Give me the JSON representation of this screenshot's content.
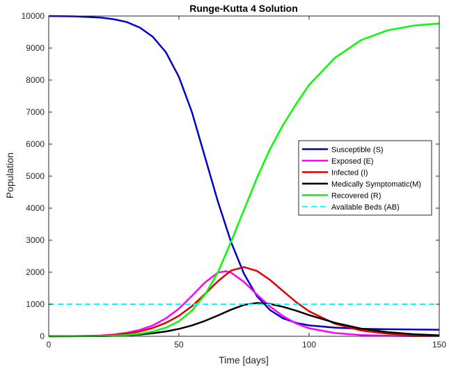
{
  "chart_data": {
    "type": "line",
    "title": "Runge-Kutta 4 Solution",
    "xlabel": "Time [days]",
    "ylabel": "Population",
    "xlim": [
      0,
      150
    ],
    "ylim": [
      0,
      10000
    ],
    "xticks": [
      "0",
      "50",
      "100",
      "150"
    ],
    "yticks": [
      "0",
      "1000",
      "2000",
      "3000",
      "4000",
      "5000",
      "6000",
      "7000",
      "8000",
      "9000",
      "10000"
    ],
    "grid": false,
    "legend_position": "center-right",
    "series": [
      {
        "name": "Susceptible (S)",
        "color": "#0000c8",
        "style": "solid",
        "x": [
          0,
          10,
          20,
          25,
          30,
          35,
          40,
          45,
          50,
          55,
          60,
          65,
          70,
          75,
          80,
          85,
          90,
          95,
          100,
          110,
          120,
          130,
          140,
          150
        ],
        "y": [
          10000,
          9990,
          9950,
          9900,
          9810,
          9640,
          9350,
          8870,
          8100,
          7000,
          5600,
          4200,
          2950,
          1950,
          1250,
          820,
          560,
          420,
          340,
          270,
          235,
          220,
          210,
          205
        ]
      },
      {
        "name": "Exposed (E)",
        "color": "#ff00ff",
        "style": "solid",
        "x": [
          0,
          10,
          20,
          25,
          30,
          35,
          40,
          45,
          50,
          55,
          60,
          65,
          68,
          70,
          75,
          80,
          85,
          90,
          95,
          100,
          110,
          120,
          130,
          140,
          150
        ],
        "y": [
          0,
          5,
          25,
          55,
          110,
          200,
          340,
          560,
          860,
          1260,
          1680,
          1990,
          2030,
          1990,
          1700,
          1300,
          930,
          630,
          400,
          250,
          100,
          40,
          15,
          6,
          2
        ]
      },
      {
        "name": "Infected (I)",
        "color": "#e00000",
        "style": "solid",
        "x": [
          0,
          10,
          20,
          25,
          30,
          35,
          40,
          45,
          50,
          55,
          60,
          65,
          70,
          75,
          80,
          85,
          90,
          95,
          100,
          110,
          120,
          130,
          140,
          150
        ],
        "y": [
          0,
          5,
          20,
          40,
          80,
          150,
          260,
          420,
          640,
          940,
          1320,
          1720,
          2050,
          2160,
          2040,
          1760,
          1410,
          1070,
          780,
          390,
          180,
          80,
          35,
          15
        ]
      },
      {
        "name": "Medically Symptomatic(M)",
        "color": "#000000",
        "style": "solid",
        "x": [
          0,
          10,
          20,
          25,
          30,
          35,
          40,
          45,
          50,
          55,
          60,
          65,
          70,
          75,
          80,
          85,
          90,
          95,
          100,
          110,
          120,
          130,
          140,
          150
        ],
        "y": [
          0,
          2,
          8,
          15,
          30,
          55,
          95,
          150,
          230,
          340,
          480,
          650,
          830,
          980,
          1040,
          1010,
          920,
          800,
          660,
          420,
          240,
          130,
          65,
          30
        ]
      },
      {
        "name": "Recovered (R)",
        "color": "#00ff00",
        "style": "solid",
        "x": [
          0,
          10,
          20,
          25,
          30,
          35,
          40,
          45,
          50,
          55,
          60,
          65,
          70,
          75,
          80,
          85,
          90,
          95,
          100,
          110,
          120,
          130,
          140,
          150
        ],
        "y": [
          0,
          2,
          10,
          20,
          40,
          80,
          150,
          270,
          470,
          800,
          1300,
          2000,
          2950,
          3950,
          4950,
          5850,
          6600,
          7250,
          7850,
          8700,
          9250,
          9550,
          9700,
          9770
        ]
      },
      {
        "name": "Available Beds (AB)",
        "color": "#00ffff",
        "style": "dashed",
        "x": [
          0,
          150
        ],
        "y": [
          1000,
          1000
        ]
      }
    ]
  }
}
